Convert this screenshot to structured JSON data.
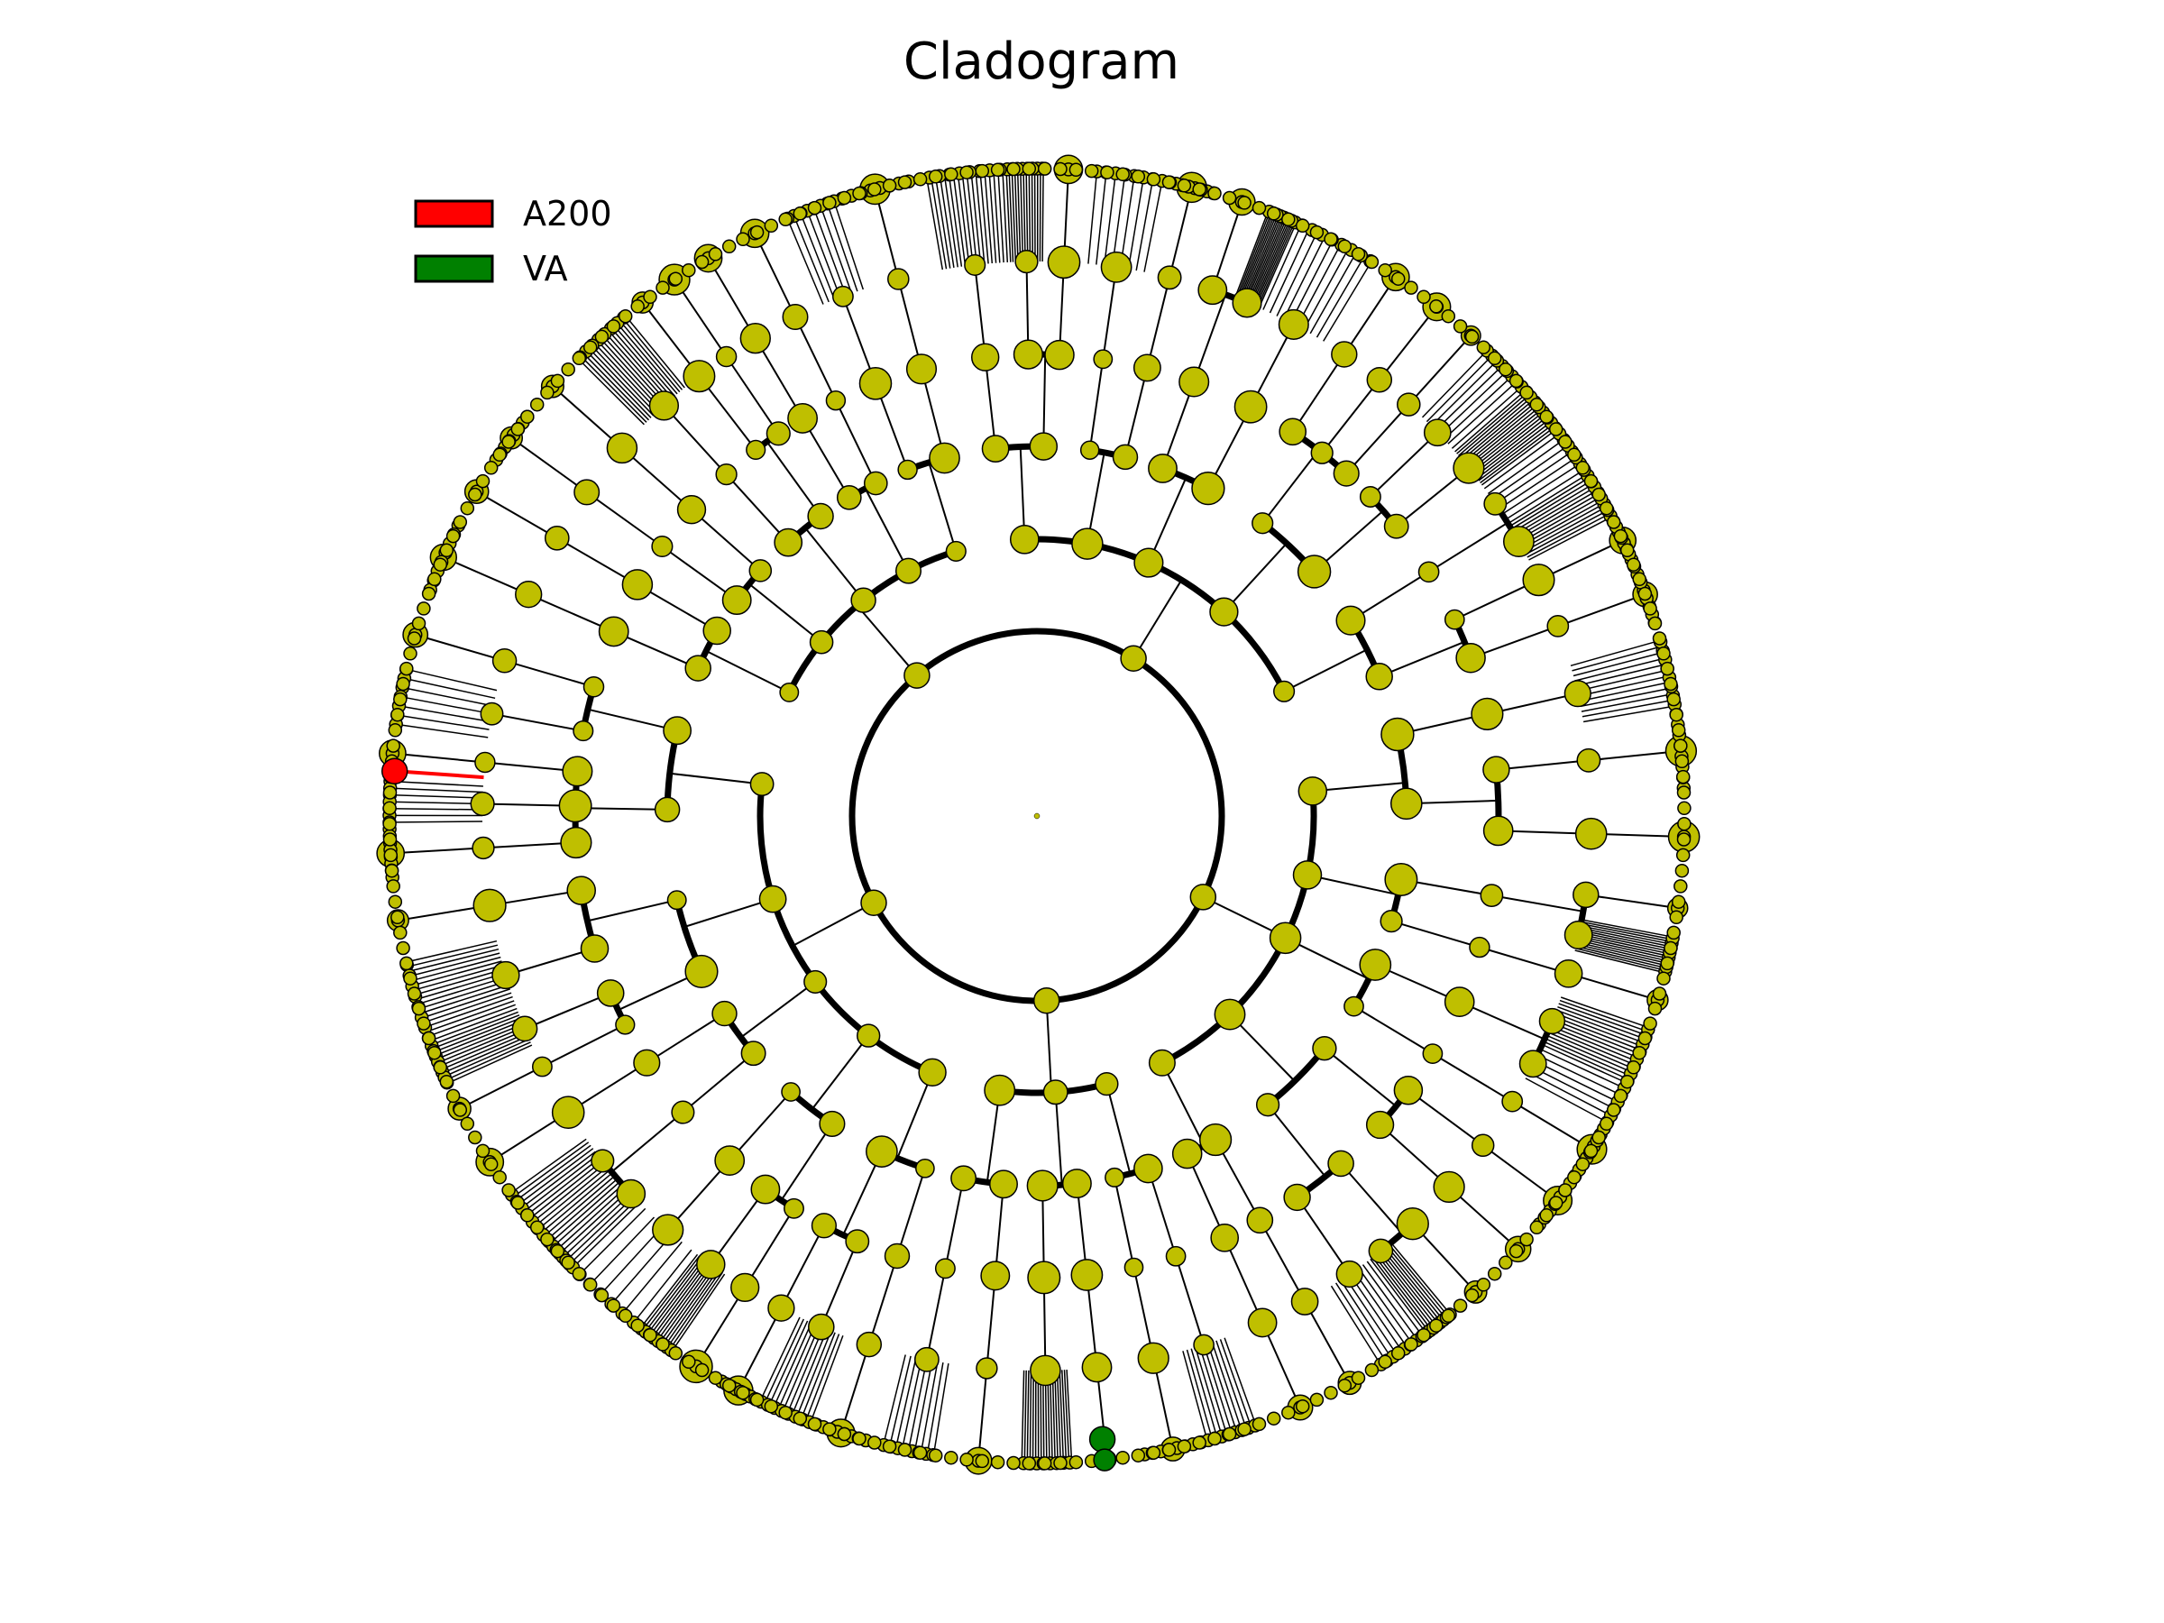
{
  "title": "Cladogram",
  "legend": [
    {
      "label": "A200",
      "color": "#ff0000"
    },
    {
      "label": "VA",
      "color": "#008000"
    }
  ],
  "colors": {
    "node_fill": "#bfbf00",
    "edge": "#000000",
    "background": "#ffffff"
  },
  "chart_data": {
    "type": "cladogram",
    "levels": 7,
    "top_level_clades": 5,
    "highlighted_clades": [
      {
        "group": "A200",
        "color": "#ff0000"
      },
      {
        "group": "VA",
        "color": "#008000"
      }
    ]
  }
}
